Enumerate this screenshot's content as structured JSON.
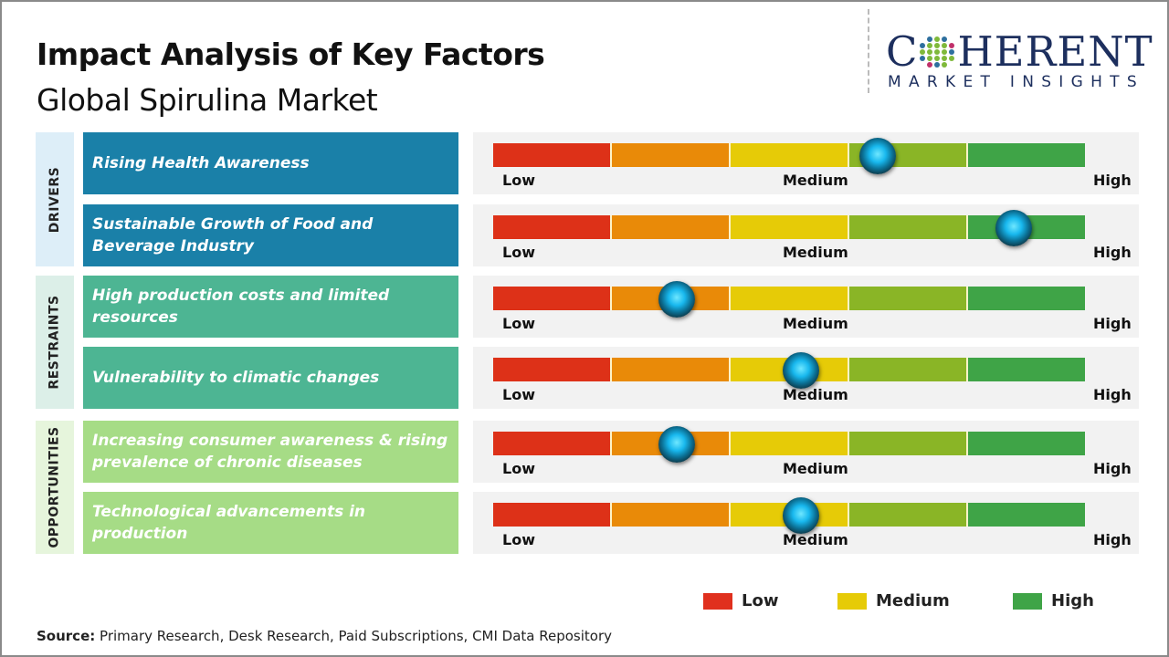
{
  "title": "Impact Analysis of Key Factors",
  "subtitle": "Global Spirulina Market",
  "logo": {
    "main": "COHERENT",
    "sub": "MARKET INSIGHTS"
  },
  "scale_labels": {
    "low": "Low",
    "medium": "Medium",
    "high": "High"
  },
  "segment_colors": [
    "#dd3118",
    "#e98a08",
    "#e6cb07",
    "#8ab526",
    "#3fa447"
  ],
  "categories": [
    {
      "label": "DRIVERS",
      "color": "#ddeef8",
      "box_color": "#1a80a8"
    },
    {
      "label": "RESTRAINTS",
      "color": "#dcefe8",
      "box_color": "#4db593"
    },
    {
      "label": "OPPORTUNITIES",
      "color": "#e6f5dc",
      "box_color": "#a6dc86"
    }
  ],
  "chart_data": {
    "type": "gauge",
    "scale": [
      "Low",
      "Medium",
      "High"
    ],
    "factors": [
      {
        "category": "DRIVERS",
        "label": "Rising Health Awareness",
        "impact": 0.65
      },
      {
        "category": "DRIVERS",
        "label": "Sustainable Growth of Food and Beverage Industry",
        "impact": 0.88
      },
      {
        "category": "RESTRAINTS",
        "label": "High production costs and limited resources",
        "impact": 0.31
      },
      {
        "category": "RESTRAINTS",
        "label": "Vulnerability to climatic changes",
        "impact": 0.52
      },
      {
        "category": "OPPORTUNITIES",
        "label": "Increasing consumer awareness & rising prevalence of chronic diseases",
        "impact": 0.31
      },
      {
        "category": "OPPORTUNITIES",
        "label": "Technological advancements in production",
        "impact": 0.52
      }
    ]
  },
  "legend": [
    {
      "label": "Low",
      "color": "#e0301e"
    },
    {
      "label": "Medium",
      "color": "#e6cb07"
    },
    {
      "label": "High",
      "color": "#3fa447"
    }
  ],
  "source": {
    "label": "Source:",
    "text": "Primary Research, Desk Research, Paid Subscriptions, CMI Data Repository"
  }
}
